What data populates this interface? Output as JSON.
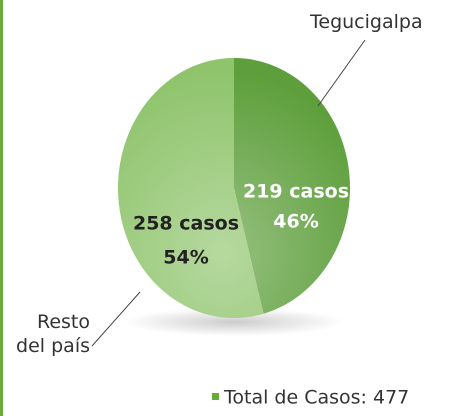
{
  "chart_data": {
    "type": "pie",
    "categories": [
      "Tegucigalpa",
      "Resto\ndel país"
    ],
    "values": [
      219,
      258
    ],
    "value_labels": [
      "219 casos",
      "258 casos"
    ],
    "percent_labels": [
      "46%",
      "54%"
    ],
    "colors": [
      "#5e9f3c",
      "#8fc46c"
    ],
    "note": "Total de Casos: 477"
  }
}
